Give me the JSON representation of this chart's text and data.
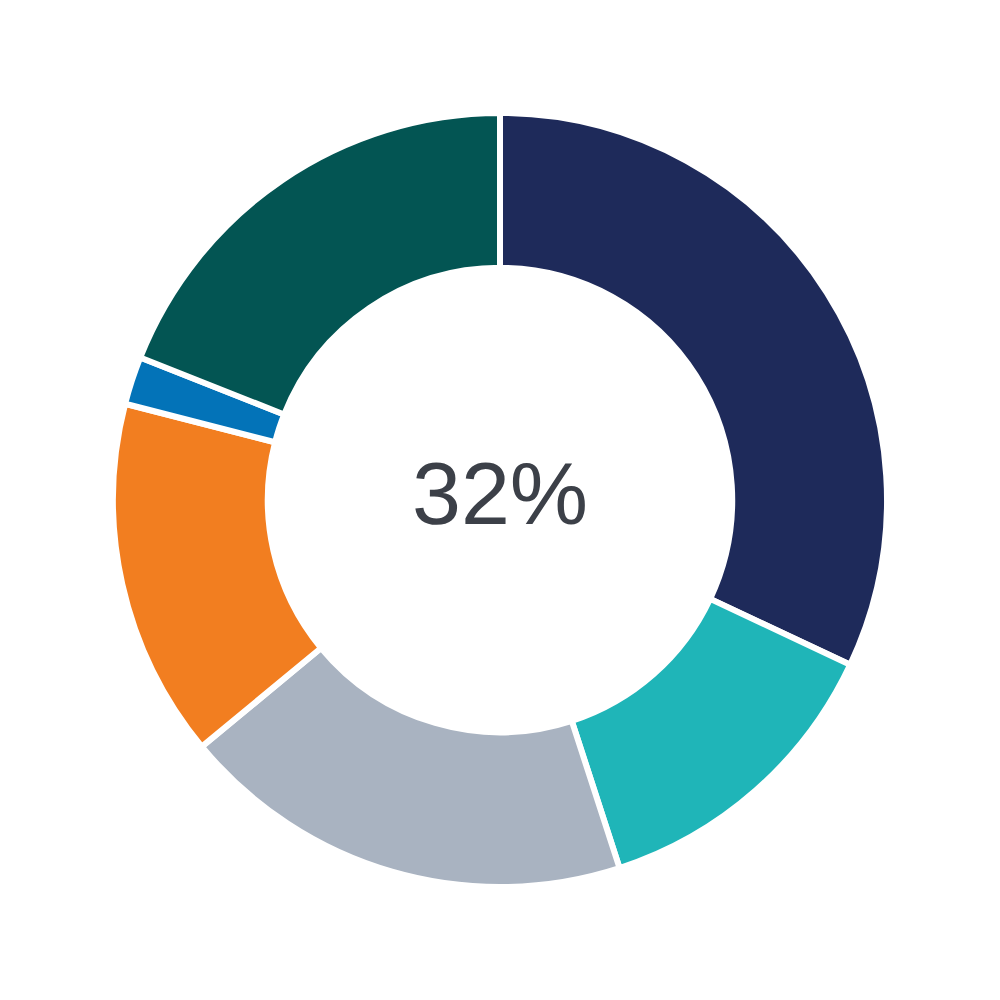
{
  "chart_data": {
    "type": "donut",
    "categories": [
      null,
      null,
      null,
      null,
      null,
      null
    ],
    "values": [
      32,
      13,
      19,
      15,
      2,
      19
    ],
    "colors": [
      "#1e2a5a",
      "#1fb5b8",
      "#a9b3c1",
      "#f27e20",
      "#0373b8",
      "#035553"
    ],
    "annotations": [
      "32%"
    ],
    "legend": false
  }
}
